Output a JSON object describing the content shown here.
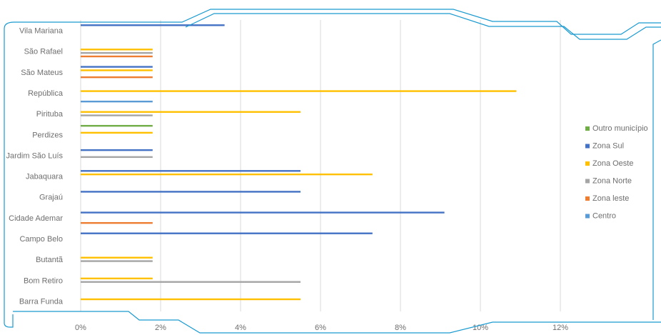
{
  "chart_data": {
    "type": "bar",
    "orientation": "horizontal",
    "categories": [
      "Barra Funda",
      "Bom Retiro",
      "Butantã",
      "Campo Belo",
      "Cidade Ademar",
      "Grajaú",
      "Jabaquara",
      "Jardim São Luís",
      "Perdizes",
      "Pirituba",
      "República",
      "São Mateus",
      "São Rafael",
      "Vila Mariana"
    ],
    "series": [
      {
        "name": "Centro",
        "color": "#5b9bd5",
        "values": [
          0,
          0,
          0,
          0,
          0,
          0,
          0,
          0,
          0,
          0,
          1.8,
          0,
          0,
          0
        ]
      },
      {
        "name": "Zona leste",
        "color": "#ed7d31",
        "values": [
          0,
          0,
          0,
          0,
          1.8,
          0,
          0,
          0,
          0,
          0,
          0,
          1.8,
          1.8,
          0
        ]
      },
      {
        "name": "Zona Norte",
        "color": "#a5a5a5",
        "values": [
          0,
          5.5,
          1.8,
          0,
          0,
          0,
          0,
          1.8,
          0,
          1.8,
          0,
          0,
          1.8,
          0
        ]
      },
      {
        "name": "Zona Oeste",
        "color": "#ffc000",
        "values": [
          5.5,
          1.8,
          1.8,
          0,
          0,
          0,
          7.3,
          0,
          1.8,
          5.5,
          10.9,
          1.8,
          1.8,
          0
        ]
      },
      {
        "name": "Zona Sul",
        "color": "#4472c4",
        "values": [
          0,
          0,
          0,
          7.3,
          9.1,
          5.5,
          5.5,
          1.8,
          0,
          0,
          0,
          1.8,
          0,
          3.6
        ]
      },
      {
        "name": "Outro município",
        "color": "#70ad47",
        "values": [
          0,
          0,
          0,
          0,
          0,
          0,
          0,
          0,
          1.8,
          0,
          0,
          0,
          0,
          0
        ]
      }
    ],
    "x_ticks": [
      "0%",
      "2%",
      "4%",
      "6%",
      "8%",
      "10%",
      "12%"
    ],
    "xlim": [
      0,
      12
    ],
    "grid": "vertical",
    "legend_position": "right"
  }
}
